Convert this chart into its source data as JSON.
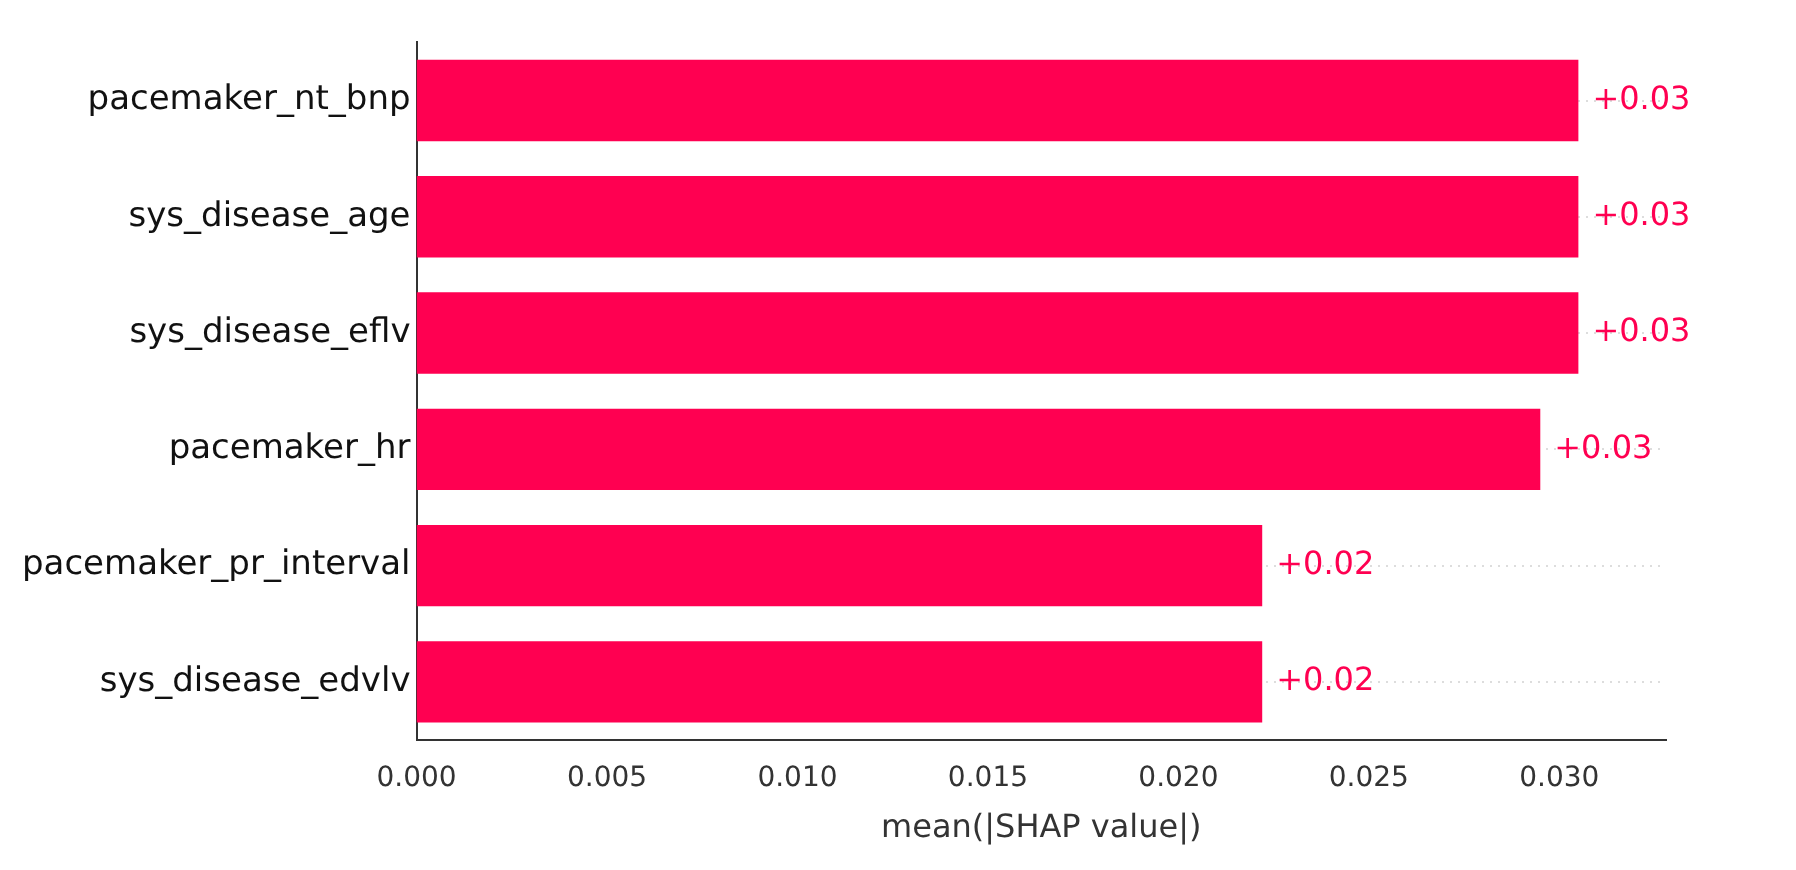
{
  "chart_data": {
    "type": "bar",
    "orientation": "horizontal",
    "xlabel": "mean(|SHAP value|)",
    "categories": [
      "pacemaker_nt_bnp",
      "sys_disease_age",
      "sys_disease_eflv",
      "pacemaker_hr",
      "pacemaker_pr_interval",
      "sys_disease_edvlv"
    ],
    "values": [
      0.0305,
      0.0305,
      0.0305,
      0.0295,
      0.0222,
      0.0222
    ],
    "value_labels": [
      "+0.03",
      "+0.03",
      "+0.03",
      "+0.03",
      "+0.02",
      "+0.02"
    ],
    "color": "#ff0051",
    "xlim": [
      0,
      0.0328
    ],
    "xticks": [
      {
        "value": 0,
        "label": "0.000"
      },
      {
        "value": 0.005,
        "label": "0.005"
      },
      {
        "value": 0.01,
        "label": "0.010"
      },
      {
        "value": 0.015,
        "label": "0.015"
      },
      {
        "value": 0.02,
        "label": "0.020"
      },
      {
        "value": 0.025,
        "label": "0.025"
      },
      {
        "value": 0.03,
        "label": "0.030"
      }
    ],
    "grid": "y"
  }
}
